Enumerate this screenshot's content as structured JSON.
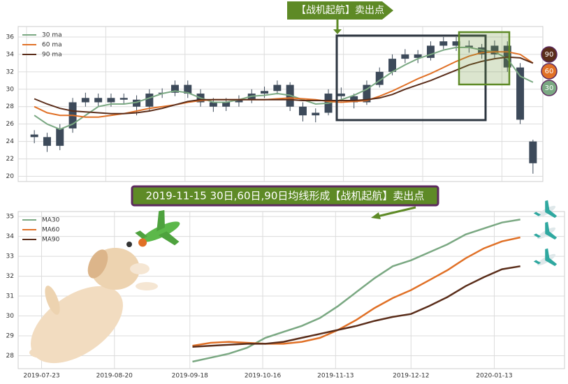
{
  "chart_data": [
    {
      "type": "candlestick",
      "annotation": "【战机起航】卖出点",
      "candle_color": "#3d4a5a",
      "ylim": [
        19.4,
        37.2
      ],
      "yticks": [
        20,
        22,
        24,
        26,
        28,
        30,
        32,
        34,
        36
      ],
      "grid": true,
      "legend": "upper left",
      "open": [
        24.8,
        24.5,
        23.5,
        25.5,
        28.5,
        29,
        28.5,
        29,
        28.8,
        28,
        29.5,
        29.6,
        30.5,
        29.5,
        28.5,
        28,
        28.5,
        28.8,
        29.5,
        29.8,
        30.5,
        28,
        27,
        27.3,
        29.5,
        29.2,
        28.5,
        30.5,
        32,
        33.5,
        34,
        33.6,
        35,
        35.5,
        35,
        34.8,
        34,
        35,
        32.5,
        21.5
      ],
      "high": [
        25.3,
        25.0,
        26.0,
        29.0,
        29.6,
        29.5,
        29.5,
        29.5,
        29.3,
        30.0,
        30.1,
        31.0,
        31.0,
        30.0,
        29.0,
        29.0,
        29.3,
        30.0,
        30.3,
        31.0,
        30.8,
        28.5,
        27.8,
        30.0,
        30.2,
        29.5,
        31.0,
        32.5,
        34.0,
        34.6,
        34.5,
        35.5,
        36.0,
        36.0,
        35.6,
        35.2,
        35.6,
        35.5,
        33.0,
        24.2
      ],
      "low": [
        23.8,
        22.8,
        23.0,
        25.0,
        28.0,
        28.0,
        28.0,
        28.3,
        27.0,
        27.5,
        29.0,
        29.2,
        29.0,
        28.0,
        27.4,
        27.5,
        28.0,
        28.4,
        29.0,
        29.4,
        27.5,
        26.3,
        26.2,
        27.0,
        28.6,
        27.8,
        28.2,
        30.2,
        31.6,
        33.0,
        33.0,
        33.3,
        34.6,
        34.4,
        34.2,
        33.5,
        33.6,
        32.0,
        26.0,
        20.3
      ],
      "close": [
        24.5,
        23.5,
        25.5,
        28.5,
        29,
        28.5,
        29,
        28.8,
        28,
        29.5,
        29.6,
        30.5,
        29.5,
        28.5,
        28,
        28.5,
        28.8,
        29.5,
        29.8,
        30.5,
        28,
        27,
        27.3,
        29.5,
        29.2,
        28.5,
        30.5,
        32,
        33.5,
        34,
        33.6,
        35,
        35.5,
        35,
        34.8,
        34,
        35,
        32.5,
        26.5,
        24
      ],
      "series": [
        {
          "name": "30 ma",
          "color": "#7aa882",
          "end_label": "30",
          "values": [
            27,
            26,
            25.4,
            26,
            27,
            28,
            28.3,
            28.3,
            28.5,
            29,
            29.5,
            29.8,
            29.6,
            29,
            28.5,
            28.5,
            28.8,
            29.2,
            29.3,
            29.5,
            29.3,
            28.8,
            28.3,
            28.4,
            28.8,
            29.3,
            30,
            31,
            32,
            32.8,
            33.5,
            34,
            34.5,
            34.8,
            34.8,
            34.5,
            34.3,
            33.5,
            31.5,
            30.8
          ]
        },
        {
          "name": "60 ma",
          "color": "#e07026",
          "end_label": "60",
          "values": [
            28,
            27.3,
            27,
            27,
            26.8,
            26.8,
            27,
            27.2,
            27.5,
            27.8,
            28,
            28.2,
            28.5,
            28.7,
            28.8,
            28.8,
            28.8,
            28.8,
            28.8,
            28.9,
            29,
            28.9,
            28.8,
            28.6,
            28.5,
            28.6,
            28.7,
            29.2,
            29.8,
            30.5,
            31.2,
            31.8,
            32.5,
            33.2,
            33.8,
            34.2,
            34.3,
            34.3,
            34,
            33
          ]
        },
        {
          "name": "90 ma",
          "color": "#5a2d1a",
          "end_label": "90",
          "values": [
            28.9,
            28.3,
            27.8,
            27.5,
            27.4,
            27.3,
            27.2,
            27.2,
            27.3,
            27.5,
            27.8,
            28.2,
            28.6,
            28.8,
            28.8,
            28.8,
            28.8,
            28.8,
            28.8,
            28.8,
            28.8,
            28.7,
            28.7,
            28.7,
            28.7,
            28.7,
            28.8,
            29.0,
            29.4,
            30.0,
            30.5,
            31.0,
            31.6,
            32.2,
            32.8,
            33.2,
            33.5,
            33.7,
            33.6,
            33.0
          ]
        }
      ]
    },
    {
      "type": "line",
      "annotation": "2019-11-15 30日,60日,90日均线形成【战机起航】卖出点",
      "x": [
        "2019-09-19",
        "2019-09-26",
        "2019-10-03",
        "2019-10-10",
        "2019-10-17",
        "2019-10-24",
        "2019-10-31",
        "2019-11-07",
        "2019-11-14",
        "2019-11-21",
        "2019-11-28",
        "2019-12-05",
        "2019-12-12",
        "2019-12-19",
        "2019-12-26",
        "2020-01-02",
        "2020-01-09",
        "2020-01-16",
        "2020-01-23"
      ],
      "xlim": [
        "2019-07-14",
        "2020-02-09"
      ],
      "xticks": [
        "2019-07-23",
        "2019-08-20",
        "2019-09-18",
        "2019-10-16",
        "2019-11-13",
        "2019-12-12",
        "2020-01-13"
      ],
      "ylim": [
        27.35,
        35.25
      ],
      "yticks": [
        28,
        29,
        30,
        31,
        32,
        33,
        34,
        35
      ],
      "grid": true,
      "legend": "upper left",
      "series": [
        {
          "name": "MA30",
          "color": "#7aa882",
          "values": [
            27.7,
            27.9,
            28.1,
            28.4,
            28.9,
            29.2,
            29.5,
            29.9,
            30.5,
            31.2,
            31.9,
            32.5,
            32.8,
            33.2,
            33.6,
            34.1,
            34.4,
            34.7,
            34.85
          ]
        },
        {
          "name": "MA60",
          "color": "#e07026",
          "values": [
            28.5,
            28.65,
            28.7,
            28.65,
            28.6,
            28.6,
            28.7,
            28.9,
            29.3,
            29.8,
            30.4,
            30.9,
            31.3,
            31.8,
            32.3,
            32.9,
            33.4,
            33.75,
            33.95
          ]
        },
        {
          "name": "MA90",
          "color": "#5a2d1a",
          "values": [
            28.45,
            28.5,
            28.55,
            28.6,
            28.6,
            28.7,
            28.9,
            29.1,
            29.3,
            29.5,
            29.75,
            29.95,
            30.1,
            30.5,
            30.95,
            31.5,
            31.95,
            32.35,
            32.5
          ]
        }
      ]
    }
  ]
}
